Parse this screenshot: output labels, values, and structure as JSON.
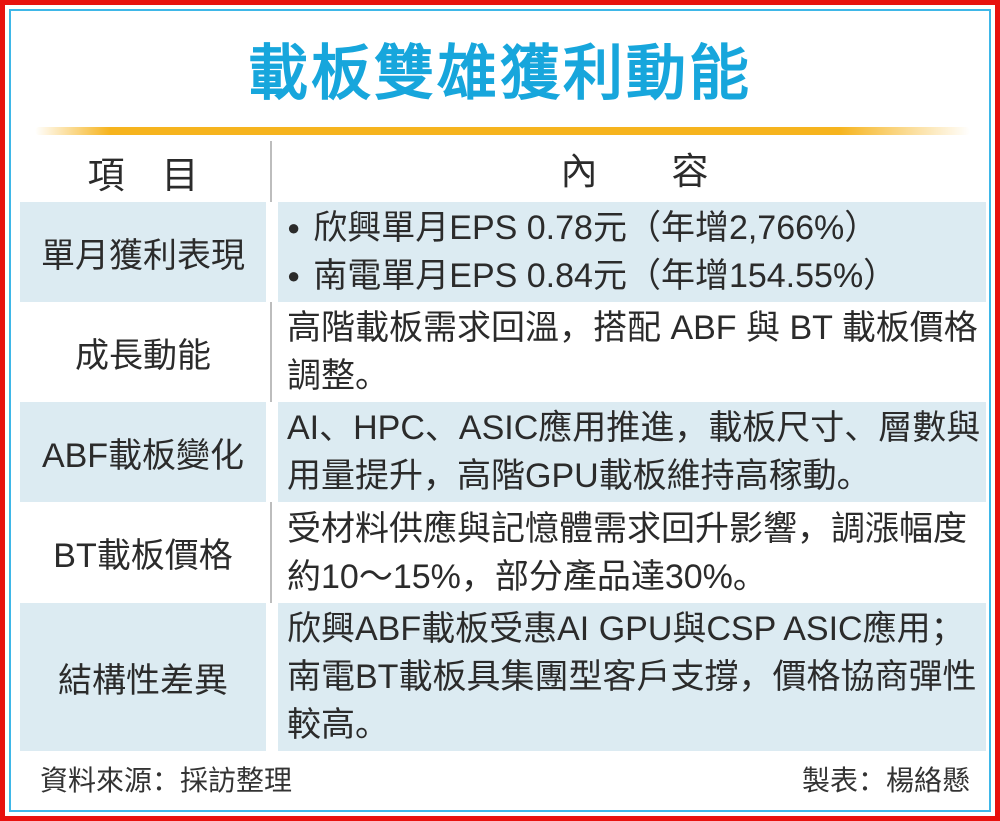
{
  "title": "載板雙雄獲利動能",
  "icons": {
    "bullet": "●"
  },
  "table": {
    "col_item": "項　目",
    "col_content": "內　　容",
    "rows": [
      {
        "label": "單月獲利表現",
        "bullets": [
          "欣興單月EPS 0.78元（年增2,766%）",
          "南電單月EPS 0.84元（年增154.55%）"
        ]
      },
      {
        "label": "成長動能",
        "text": "高階載板需求回溫，搭配 ABF 與 BT 載板價格調整。"
      },
      {
        "label": "ABF載板變化",
        "text": "AI、HPC、ASIC應用推進，載板尺寸、層數與用量提升，高階GPU載板維持高稼動。"
      },
      {
        "label": "BT載板價格",
        "text": "受材料供應與記憶體需求回升影響，調漲幅度約10～15%，部分產品達30%。"
      },
      {
        "label": "結構性差異",
        "text": "欣興ABF載板受惠AI GPU與CSP ASIC應用；南電BT載板具集團型客戶支撐，價格協商彈性較高。"
      }
    ]
  },
  "footer": {
    "source": "資料來源：採訪整理",
    "credit": "製表：楊絡懸"
  },
  "colors": {
    "outer_border": "#e8120f",
    "inner_border": "#3eb7e8",
    "title": "#17a6dc",
    "divider_gold": "#f6b41e",
    "row_blue": "#dcebf2",
    "text": "#2b2b2b",
    "column_divider": "#bdbdbd"
  }
}
